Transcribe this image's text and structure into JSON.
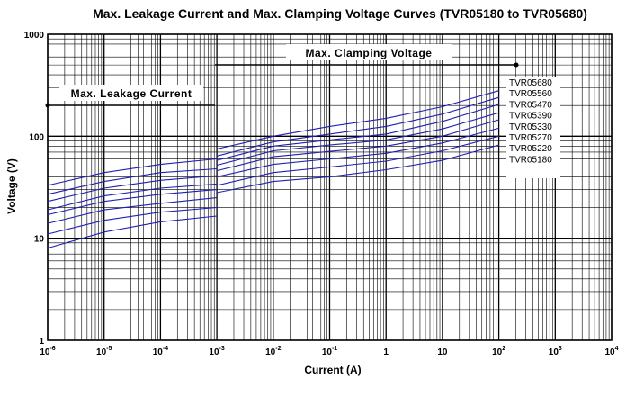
{
  "chart_data": {
    "type": "line",
    "title": "Max. Leakage Current and Max. Clamping Voltage Curves (TVR05180 to TVR05680)",
    "xlabel": "Current (A)",
    "ylabel": "Voltage  (V)",
    "x_scale": "log",
    "y_scale": "log",
    "xlim": [
      1e-06,
      10000
    ],
    "ylim": [
      1,
      1000
    ],
    "x_tick_labels": [
      {
        "base": "10",
        "exp": "-6"
      },
      {
        "base": "10",
        "exp": "-5"
      },
      {
        "base": "10",
        "exp": "-4"
      },
      {
        "base": "10",
        "exp": "-3"
      },
      {
        "base": "10",
        "exp": "-2"
      },
      {
        "base": "10",
        "exp": "-1"
      },
      {
        "base": "1",
        "exp": ""
      },
      {
        "base": "10",
        "exp": ""
      },
      {
        "base": "10",
        "exp": "2"
      },
      {
        "base": "10",
        "exp": "3"
      },
      {
        "base": "10",
        "exp": "4"
      }
    ],
    "y_tick_labels": [
      "1",
      "10",
      "100",
      "1000"
    ],
    "grid": true,
    "series_color": "#1f1fb4",
    "annotations": {
      "leakage_label": "Max. Leakage Current",
      "clamping_label": "Max. Clamping Voltage"
    },
    "legend": [
      "TVR05680",
      "TVR05560",
      "TVR05470",
      "TVR05390",
      "TVR05330",
      "TVR05270",
      "TVR05220",
      "TVR05180"
    ],
    "series": [
      {
        "name": "TVR05680",
        "leakage": {
          "x": [
            1e-06,
            1e-05,
            0.0001,
            0.001
          ],
          "y": [
            33,
            44,
            53,
            60
          ]
        },
        "clamping": {
          "x": [
            0.001,
            0.01,
            0.1,
            1,
            10,
            100
          ],
          "y": [
            75,
            100,
            125,
            150,
            195,
            280
          ]
        }
      },
      {
        "name": "TVR05560",
        "leakage": {
          "x": [
            1e-06,
            1e-05,
            0.0001,
            0.001
          ],
          "y": [
            27,
            36,
            44,
            48
          ]
        },
        "clamping": {
          "x": [
            0.001,
            0.01,
            0.1,
            1,
            10,
            100
          ],
          "y": [
            64,
            88,
            105,
            125,
            165,
            240
          ]
        }
      },
      {
        "name": "TVR05470",
        "leakage": {
          "x": [
            1e-06,
            1e-05,
            0.0001,
            0.001
          ],
          "y": [
            23,
            31,
            37,
            41
          ]
        },
        "clamping": {
          "x": [
            0.001,
            0.01,
            0.1,
            1,
            10,
            100
          ],
          "y": [
            58,
            80,
            92,
            105,
            140,
            205
          ]
        }
      },
      {
        "name": "TVR05390",
        "leakage": {
          "x": [
            1e-06,
            1e-05,
            0.0001,
            0.001
          ],
          "y": [
            19,
            26,
            31,
            34
          ]
        },
        "clamping": {
          "x": [
            0.001,
            0.01,
            0.1,
            1,
            10,
            100
          ],
          "y": [
            52,
            72,
            82,
            92,
            118,
            170
          ]
        }
      },
      {
        "name": "TVR05330",
        "leakage": {
          "x": [
            1e-06,
            1e-05,
            0.0001,
            0.001
          ],
          "y": [
            17,
            23,
            27,
            30
          ]
        },
        "clamping": {
          "x": [
            0.001,
            0.01,
            0.1,
            1,
            10,
            100
          ],
          "y": [
            46,
            63,
            71,
            80,
            100,
            145
          ]
        }
      },
      {
        "name": "TVR05270",
        "leakage": {
          "x": [
            1e-06,
            1e-05,
            0.0001,
            0.001
          ],
          "y": [
            14,
            19,
            22,
            25
          ]
        },
        "clamping": {
          "x": [
            0.001,
            0.01,
            0.1,
            1,
            10,
            100
          ],
          "y": [
            40,
            53,
            60,
            68,
            86,
            120
          ]
        }
      },
      {
        "name": "TVR05220",
        "leakage": {
          "x": [
            1e-06,
            1e-05,
            0.0001,
            0.001
          ],
          "y": [
            11,
            15,
            18,
            20
          ]
        },
        "clamping": {
          "x": [
            0.001,
            0.01,
            0.1,
            1,
            10,
            100
          ],
          "y": [
            33,
            44,
            50,
            57,
            72,
            100
          ]
        }
      },
      {
        "name": "TVR05180",
        "leakage": {
          "x": [
            1e-06,
            1e-05,
            0.0001,
            0.001
          ],
          "y": [
            8,
            11.5,
            14.5,
            16.5
          ]
        },
        "clamping": {
          "x": [
            0.001,
            0.01,
            0.1,
            1,
            10,
            100
          ],
          "y": [
            28,
            36,
            40,
            47,
            58,
            82
          ]
        }
      }
    ]
  }
}
